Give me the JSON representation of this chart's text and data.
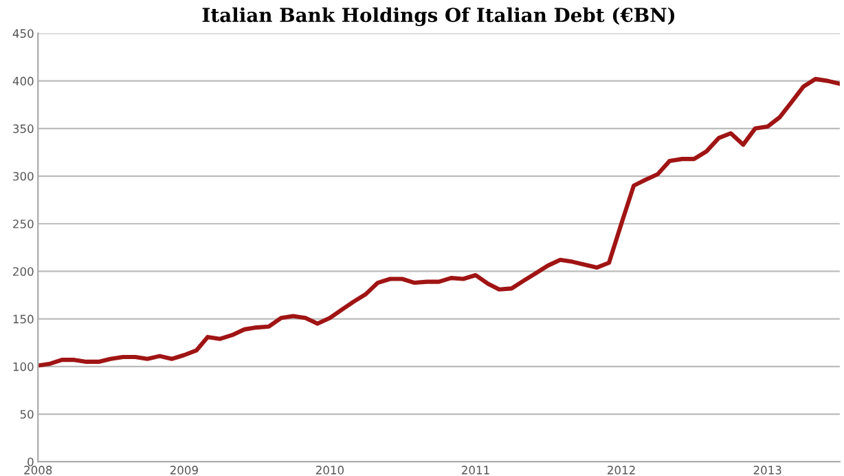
{
  "chart_data": {
    "type": "line",
    "title": "Italian Bank Holdings Of Italian Debt (€BN)",
    "x": [
      "2008-01",
      "2008-02",
      "2008-03",
      "2008-04",
      "2008-05",
      "2008-06",
      "2008-07",
      "2008-08",
      "2008-09",
      "2008-10",
      "2008-11",
      "2008-12",
      "2009-01",
      "2009-02",
      "2009-03",
      "2009-04",
      "2009-05",
      "2009-06",
      "2009-07",
      "2009-08",
      "2009-09",
      "2009-10",
      "2009-11",
      "2009-12",
      "2010-01",
      "2010-02",
      "2010-03",
      "2010-04",
      "2010-05",
      "2010-06",
      "2010-07",
      "2010-08",
      "2010-09",
      "2010-10",
      "2010-11",
      "2010-12",
      "2011-01",
      "2011-02",
      "2011-03",
      "2011-04",
      "2011-05",
      "2011-06",
      "2011-07",
      "2011-08",
      "2011-09",
      "2011-10",
      "2011-11",
      "2011-12",
      "2012-01",
      "2012-02",
      "2012-03",
      "2012-04",
      "2012-05",
      "2012-06",
      "2012-07",
      "2012-08",
      "2012-09",
      "2012-10",
      "2012-11",
      "2012-12",
      "2013-01",
      "2013-02",
      "2013-03",
      "2013-04",
      "2013-05",
      "2013-06",
      "2013-07"
    ],
    "series": [
      {
        "color": "#a01414",
        "values": [
          101,
          103,
          107,
          107,
          105,
          105,
          108,
          110,
          110,
          108,
          111,
          108,
          112,
          117,
          131,
          129,
          133,
          139,
          141,
          142,
          151,
          153,
          151,
          145,
          151,
          160,
          168,
          176,
          188,
          192,
          192,
          188,
          189,
          189,
          193,
          192,
          196,
          187,
          181,
          182,
          190,
          198,
          206,
          212,
          210,
          207,
          204,
          209,
          250,
          290,
          296,
          302,
          316,
          318,
          318,
          326,
          340,
          345,
          333,
          350,
          352,
          362,
          377,
          394,
          402,
          400,
          397
        ]
      }
    ],
    "xlim": [
      "2008-01",
      "2013-07"
    ],
    "xticks": [
      {
        "value": "2008-01",
        "label": "2008"
      },
      {
        "value": "2009-01",
        "label": "2009"
      },
      {
        "value": "2010-01",
        "label": "2010"
      },
      {
        "value": "2011-01",
        "label": "2011"
      },
      {
        "value": "2012-01",
        "label": "2012"
      },
      {
        "value": "2013-01",
        "label": "2013"
      }
    ],
    "ylim": [
      0,
      450
    ],
    "yticks": [
      0,
      50,
      100,
      150,
      200,
      250,
      300,
      350,
      400,
      450
    ],
    "grid": "y",
    "marker": "none",
    "line_style": "solid"
  }
}
